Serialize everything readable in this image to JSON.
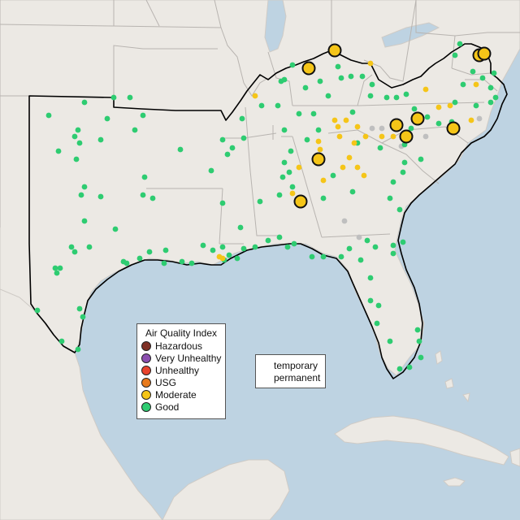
{
  "legend": {
    "title": "Air Quality Index",
    "items": [
      {
        "label": "Hazardous",
        "color": "#7e2f24"
      },
      {
        "label": "Very Unhealthy",
        "color": "#8b4fb0"
      },
      {
        "label": "Unhealthy",
        "color": "#e8432d"
      },
      {
        "label": "USG",
        "color": "#e87a1c"
      },
      {
        "label": "Moderate",
        "color": "#f5c518"
      },
      {
        "label": "Good",
        "color": "#2ecc71"
      }
    ]
  },
  "shape_legend": {
    "temporary_label": "temporary",
    "permanent_label": "permanent"
  },
  "colors": {
    "water": "#bed3e2",
    "land": "#ece9e4",
    "border": "#b8b4b0",
    "region_outline": "#000000",
    "good": "#2ecc71",
    "moderate": "#f5c518",
    "no_data": "#bfbfbf"
  }
}
